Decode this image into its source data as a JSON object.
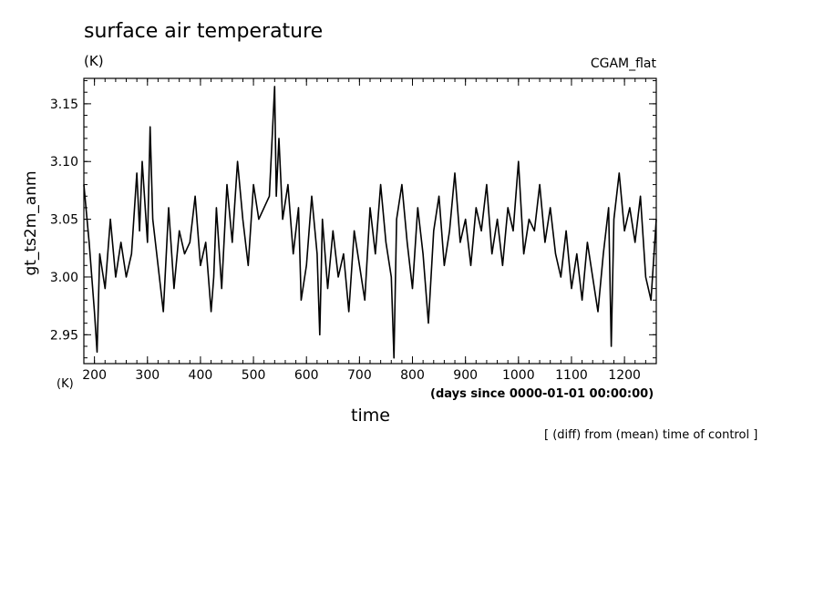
{
  "chart_data": {
    "type": "line",
    "title": "surface air temperature",
    "units": "(K)",
    "run_label": "CGAM_flat",
    "ylabel": "gt_ts2m_anm",
    "y_units": "(K)",
    "xlabel": "time",
    "x_units": "(days since 0000-01-01 00:00:00)",
    "note": "[ (diff) from (mean) time of control ]",
    "xlim": [
      180,
      1260
    ],
    "ylim": [
      2.925,
      3.172
    ],
    "x_ticks": [
      200,
      300,
      400,
      500,
      600,
      700,
      800,
      900,
      1000,
      1100,
      1200
    ],
    "y_ticks": [
      2.95,
      3.0,
      3.05,
      3.1,
      3.15
    ],
    "x_tick_labels": [
      "200",
      "300",
      "400",
      "500",
      "600",
      "700",
      "800",
      "900",
      "1000",
      "1100",
      "1200"
    ],
    "y_tick_labels": [
      "2.95",
      "3.00",
      "3.05",
      "3.10",
      "3.15"
    ],
    "grid": false,
    "series": [
      {
        "color": "#000000",
        "x": [
          180,
          190,
          200,
          205,
          210,
          220,
          230,
          240,
          250,
          260,
          270,
          280,
          285,
          290,
          300,
          305,
          310,
          320,
          330,
          340,
          350,
          360,
          370,
          380,
          390,
          400,
          410,
          420,
          425,
          430,
          440,
          450,
          460,
          470,
          480,
          490,
          500,
          510,
          520,
          530,
          540,
          543,
          548,
          555,
          565,
          575,
          585,
          590,
          600,
          610,
          620,
          625,
          630,
          640,
          650,
          660,
          670,
          680,
          690,
          700,
          710,
          720,
          730,
          740,
          750,
          760,
          765,
          770,
          780,
          790,
          800,
          810,
          820,
          830,
          840,
          850,
          860,
          870,
          880,
          890,
          900,
          910,
          920,
          930,
          940,
          950,
          960,
          970,
          980,
          990,
          1000,
          1010,
          1020,
          1030,
          1040,
          1050,
          1060,
          1070,
          1080,
          1090,
          1100,
          1110,
          1120,
          1130,
          1140,
          1150,
          1160,
          1170,
          1175,
          1180,
          1190,
          1200,
          1210,
          1220,
          1230,
          1240,
          1250,
          1260
        ],
        "y": [
          3.08,
          3.03,
          2.97,
          2.935,
          3.02,
          2.99,
          3.05,
          3.0,
          3.03,
          3.0,
          3.02,
          3.09,
          3.04,
          3.1,
          3.03,
          3.13,
          3.05,
          3.01,
          2.97,
          3.06,
          2.99,
          3.04,
          3.02,
          3.03,
          3.07,
          3.01,
          3.03,
          2.97,
          3.0,
          3.06,
          2.99,
          3.08,
          3.03,
          3.1,
          3.05,
          3.01,
          3.08,
          3.05,
          3.06,
          3.07,
          3.165,
          3.07,
          3.12,
          3.05,
          3.08,
          3.02,
          3.06,
          2.98,
          3.01,
          3.07,
          3.02,
          2.95,
          3.05,
          2.99,
          3.04,
          3.0,
          3.02,
          2.97,
          3.04,
          3.01,
          2.98,
          3.06,
          3.02,
          3.08,
          3.03,
          3.0,
          2.93,
          3.05,
          3.08,
          3.03,
          2.99,
          3.06,
          3.02,
          2.96,
          3.04,
          3.07,
          3.01,
          3.04,
          3.09,
          3.03,
          3.05,
          3.01,
          3.06,
          3.04,
          3.08,
          3.02,
          3.05,
          3.01,
          3.06,
          3.04,
          3.1,
          3.02,
          3.05,
          3.04,
          3.08,
          3.03,
          3.06,
          3.02,
          3.0,
          3.04,
          2.99,
          3.02,
          2.98,
          3.03,
          3.0,
          2.97,
          3.02,
          3.06,
          2.94,
          3.05,
          3.09,
          3.04,
          3.06,
          3.03,
          3.07,
          3.0,
          2.98,
          3.05
        ]
      }
    ]
  }
}
